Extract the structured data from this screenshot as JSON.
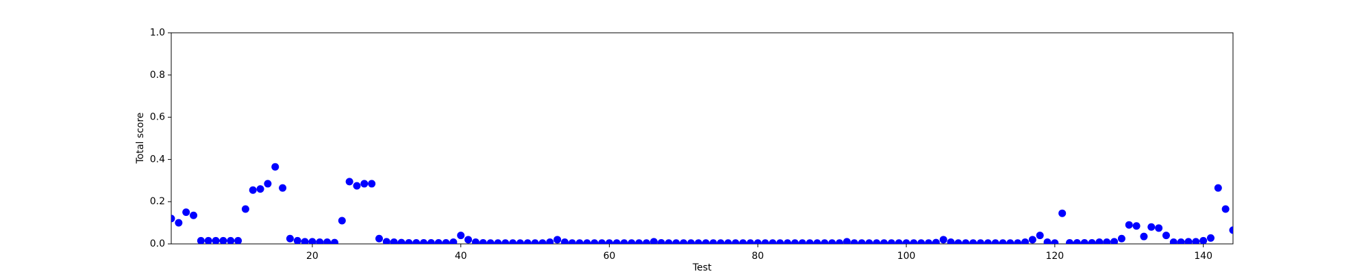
{
  "chart_data": {
    "type": "scatter",
    "x_label": "Test",
    "y_label": "Total score",
    "color": "blue",
    "xlim": [
      1,
      144
    ],
    "ylim": [
      0,
      1
    ],
    "xticks": [
      20,
      40,
      60,
      80,
      100,
      120,
      140
    ],
    "yticks": [
      {
        "value": 0,
        "label": "0.0"
      },
      0.2,
      0.4,
      0.6,
      0.8,
      {
        "value": 1,
        "label": "1.0"
      }
    ],
    "x": [
      1,
      2,
      3,
      4,
      5,
      6,
      7,
      8,
      9,
      10,
      11,
      12,
      13,
      14,
      15,
      16,
      17,
      18,
      19,
      20,
      21,
      22,
      23,
      24,
      25,
      26,
      27,
      28,
      29,
      30,
      31,
      32,
      33,
      34,
      35,
      36,
      37,
      38,
      39,
      40,
      41,
      42,
      43,
      44,
      45,
      46,
      47,
      48,
      49,
      50,
      51,
      52,
      53,
      54,
      55,
      56,
      57,
      58,
      59,
      60,
      61,
      62,
      63,
      64,
      65,
      66,
      67,
      68,
      69,
      70,
      71,
      72,
      73,
      74,
      75,
      76,
      77,
      78,
      79,
      80,
      81,
      82,
      83,
      84,
      85,
      86,
      87,
      88,
      89,
      90,
      91,
      92,
      93,
      94,
      95,
      96,
      97,
      98,
      99,
      100,
      101,
      102,
      103,
      104,
      105,
      106,
      107,
      108,
      109,
      110,
      111,
      112,
      113,
      114,
      115,
      116,
      117,
      118,
      119,
      120,
      121,
      122,
      123,
      124,
      125,
      126,
      127,
      128,
      129,
      130,
      131,
      132,
      133,
      134,
      135,
      136,
      137,
      138,
      139,
      140,
      141,
      142,
      143,
      144
    ],
    "values": [
      0.12,
      0.1,
      0.15,
      0.135,
      0.015,
      0.015,
      0.015,
      0.015,
      0.015,
      0.015,
      0.165,
      0.255,
      0.26,
      0.285,
      0.365,
      0.265,
      0.025,
      0.015,
      0.01,
      0.01,
      0.008,
      0.008,
      0.006,
      0.11,
      0.295,
      0.275,
      0.285,
      0.285,
      0.025,
      0.01,
      0.008,
      0.006,
      0.005,
      0.005,
      0.005,
      0.005,
      0.005,
      0.005,
      0.008,
      0.04,
      0.02,
      0.008,
      0.005,
      0.004,
      0.004,
      0.004,
      0.004,
      0.004,
      0.004,
      0.004,
      0.004,
      0.008,
      0.02,
      0.008,
      0.004,
      0.004,
      0.004,
      0.004,
      0.004,
      0.004,
      0.004,
      0.004,
      0.004,
      0.004,
      0.004,
      0.01,
      0.005,
      0.004,
      0.004,
      0.004,
      0.004,
      0.004,
      0.004,
      0.004,
      0.004,
      0.004,
      0.004,
      0.004,
      0.004,
      0.004,
      0.004,
      0.004,
      0.004,
      0.004,
      0.004,
      0.004,
      0.004,
      0.004,
      0.004,
      0.004,
      0.004,
      0.01,
      0.004,
      0.004,
      0.004,
      0.004,
      0.004,
      0.004,
      0.004,
      0.004,
      0.004,
      0.004,
      0.004,
      0.006,
      0.02,
      0.008,
      0.004,
      0.004,
      0.004,
      0.004,
      0.004,
      0.004,
      0.004,
      0.004,
      0.004,
      0.008,
      0.02,
      0.04,
      0.008,
      0.004,
      0.145,
      0.005,
      0.005,
      0.005,
      0.005,
      0.008,
      0.008,
      0.01,
      0.025,
      0.09,
      0.085,
      0.035,
      0.08,
      0.075,
      0.04,
      0.008,
      0.008,
      0.01,
      0.01,
      0.015,
      0.028,
      0.265,
      0.165,
      0.065
    ]
  }
}
